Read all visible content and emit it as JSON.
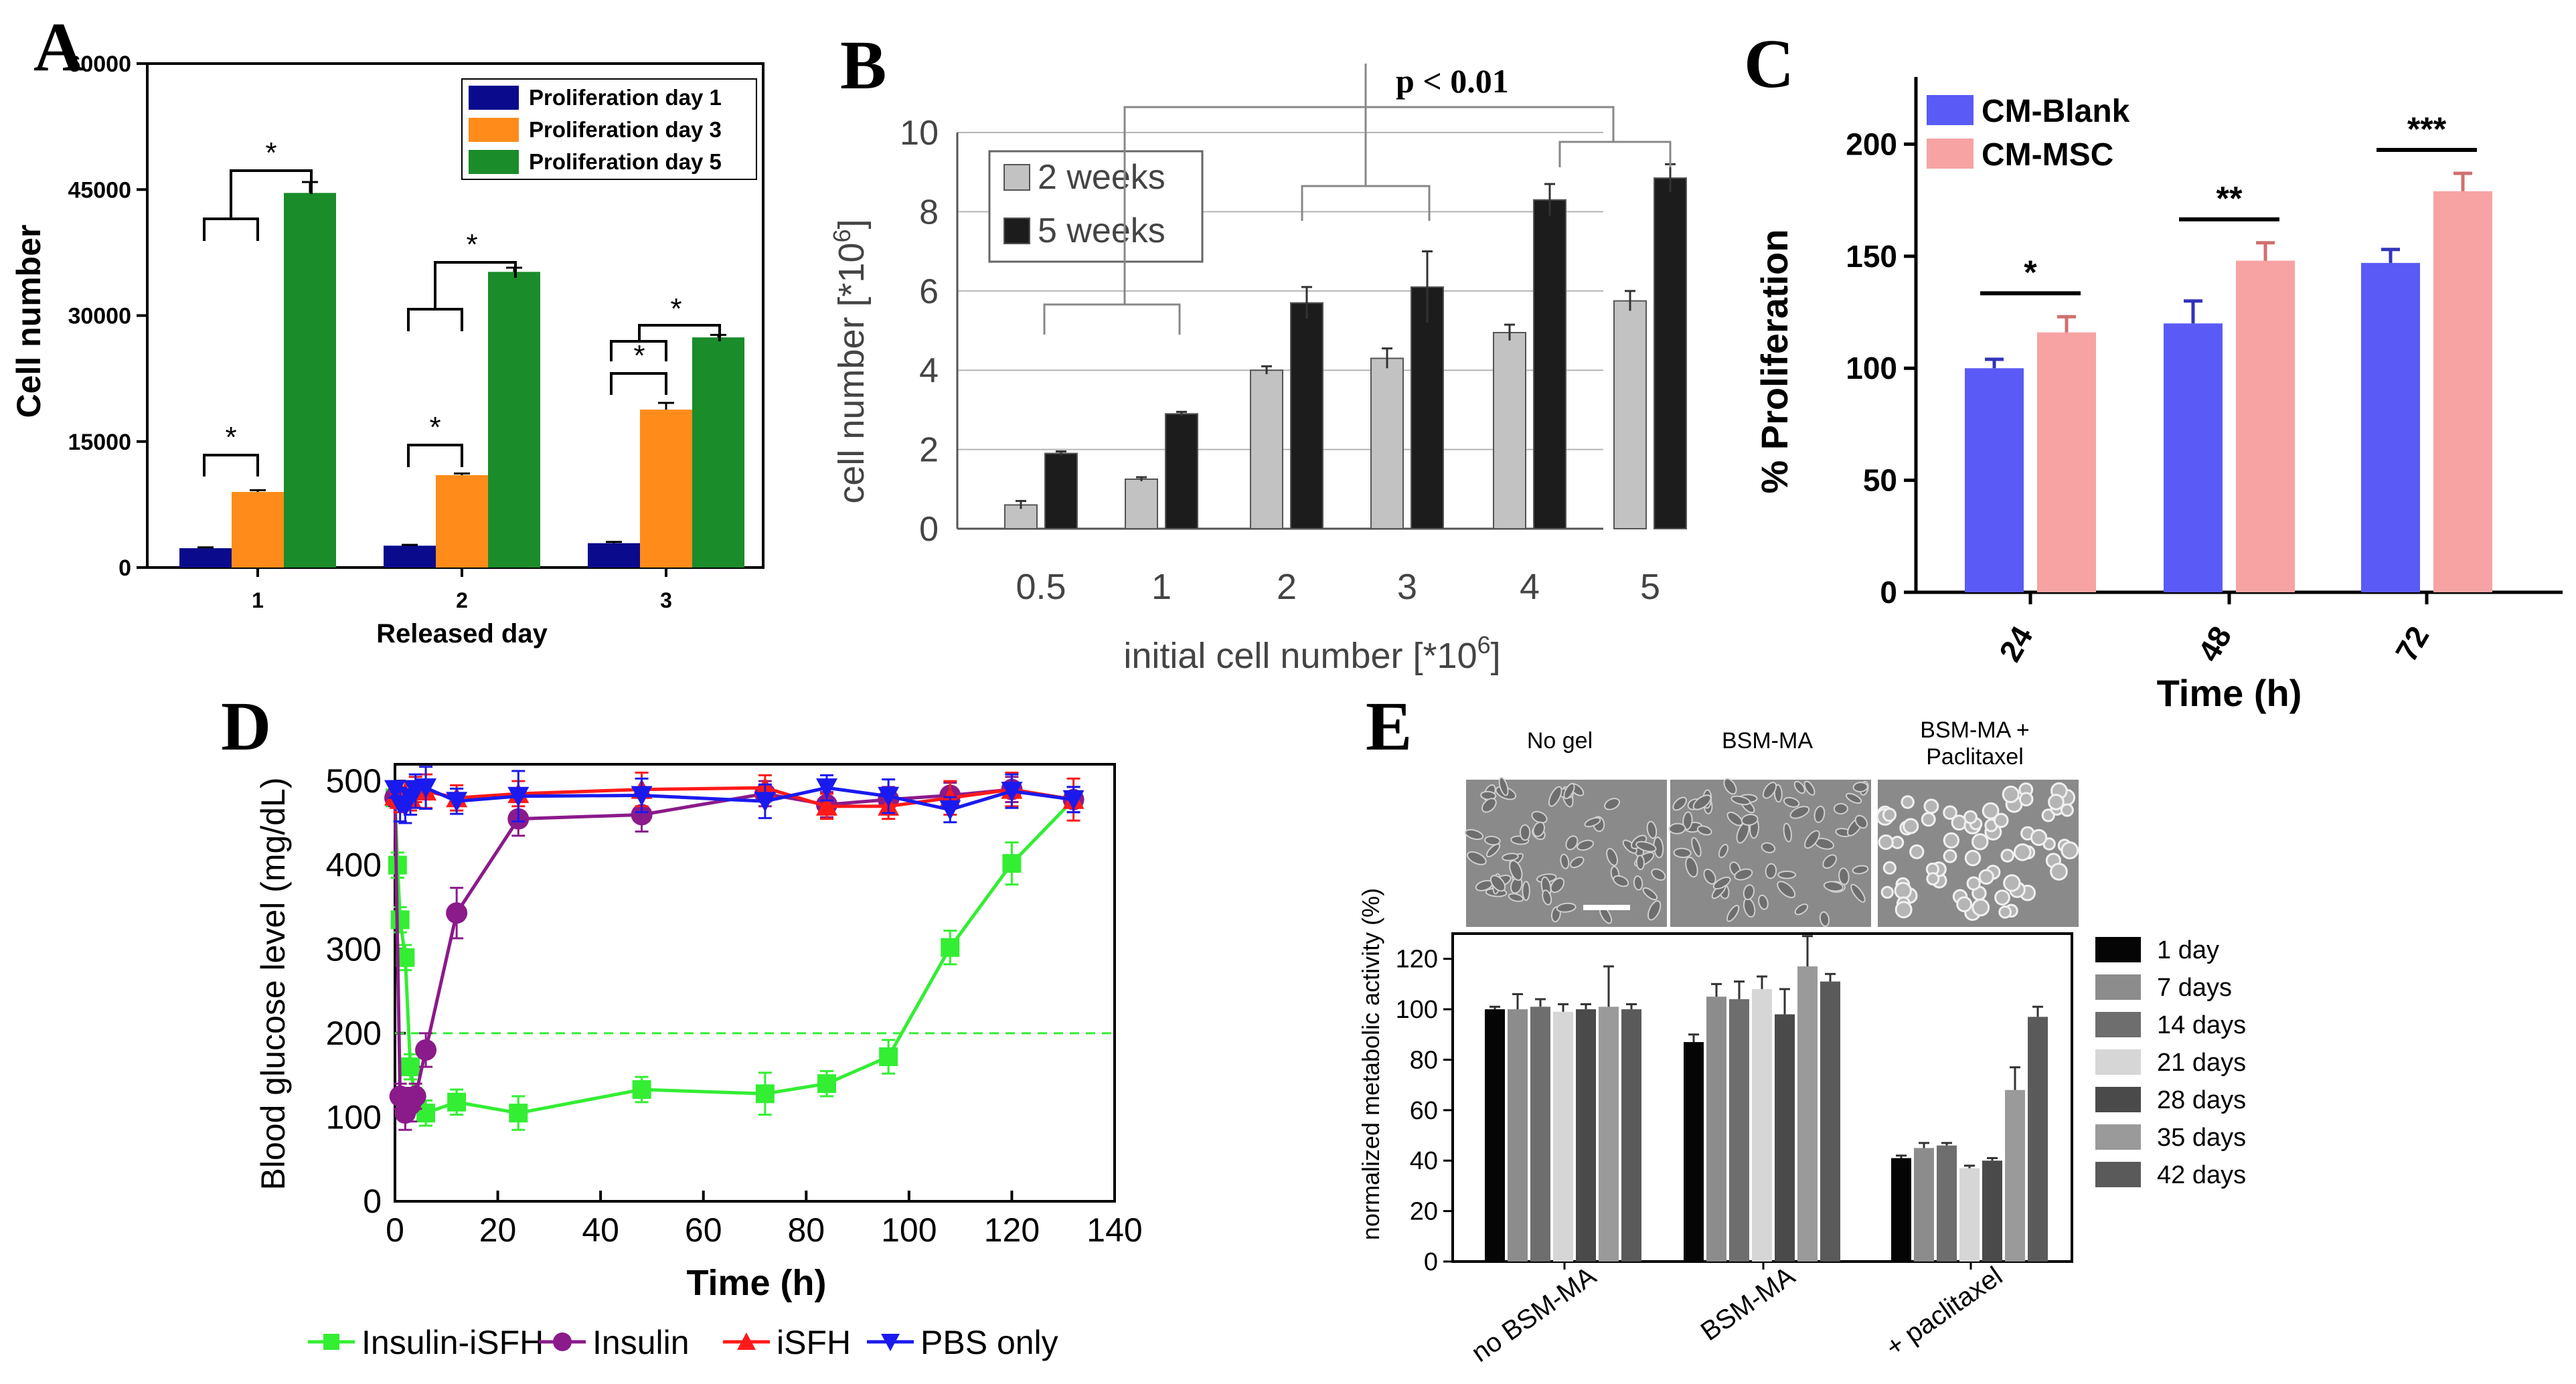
{
  "chart_data": [
    {
      "panel": "A",
      "type": "bar",
      "xlabel": "Released day",
      "ylabel": "Cell number",
      "categories": [
        "1",
        "2",
        "3"
      ],
      "ylim": [
        0,
        60000
      ],
      "yticks": [
        "0",
        "15000",
        "30000",
        "45000",
        "60000"
      ],
      "series": [
        {
          "name": "Proliferation day 1",
          "color": "#0a0a8c",
          "values": [
            2300,
            2600,
            2900
          ],
          "errors": [
            100,
            100,
            150
          ]
        },
        {
          "name": "Proliferation day 3",
          "color": "#ff8c1a",
          "values": [
            9000,
            11000,
            18800
          ],
          "errors": [
            200,
            200,
            800
          ]
        },
        {
          "name": "Proliferation day 5",
          "color": "#1a8c2a",
          "values": [
            44600,
            35200,
            27400
          ],
          "errors": [
            1300,
            500,
            300
          ]
        }
      ],
      "annotations": [
        "*",
        "*",
        "*",
        "*",
        "*",
        "*",
        "*"
      ]
    },
    {
      "panel": "B",
      "type": "bar",
      "xlabel": "initial cell number [*10",
      "xlabel_sup": "6",
      "xlabel_end": "]",
      "ylabel": "cell number [*10",
      "ylabel_sup": "6",
      "ylabel_end": "]",
      "categories": [
        "0.5",
        "1",
        "2",
        "3",
        "4",
        "5"
      ],
      "ylim": [
        0,
        10
      ],
      "yticks": [
        "0",
        "2",
        "4",
        "6",
        "8",
        "10"
      ],
      "series": [
        {
          "name": "2 weeks",
          "color": "#c2c2c2",
          "values": [
            0.6,
            1.25,
            4.0,
            4.3,
            4.95,
            5.75
          ],
          "errors": [
            0.1,
            0.05,
            0.1,
            0.25,
            0.2,
            0.25
          ]
        },
        {
          "name": "5 weeks",
          "color": "#1c1c1c",
          "values": [
            1.9,
            2.9,
            5.7,
            6.1,
            8.3,
            8.85
          ],
          "errors": [
            0.05,
            0.05,
            0.4,
            0.9,
            0.4,
            0.35
          ]
        }
      ],
      "annotation": "p < 0.01"
    },
    {
      "panel": "C",
      "type": "bar",
      "xlabel": "Time (h)",
      "ylabel": "% Proliferation",
      "categories": [
        "24",
        "48",
        "72"
      ],
      "ylim": [
        0,
        230
      ],
      "yticks": [
        "0",
        "50",
        "100",
        "150",
        "200"
      ],
      "series": [
        {
          "name": "CM-Blank",
          "color": "#5a5af7",
          "values": [
            100,
            120,
            147
          ],
          "errors": [
            4,
            10,
            6
          ]
        },
        {
          "name": "CM-MSC",
          "color": "#f7a3a3",
          "values": [
            116,
            148,
            179
          ],
          "errors": [
            7,
            8,
            8
          ]
        }
      ],
      "annotations": [
        "*",
        "**",
        "***"
      ]
    },
    {
      "panel": "D",
      "type": "line",
      "xlabel": "Time (h)",
      "ylabel": "Blood glucose level (mg/dL)",
      "xlim": [
        0,
        140
      ],
      "ylim": [
        0,
        520
      ],
      "xticks": [
        "0",
        "20",
        "40",
        "60",
        "80",
        "100",
        "120",
        "140"
      ],
      "yticks": [
        "0",
        "100",
        "200",
        "300",
        "400",
        "500"
      ],
      "reference_line": 200,
      "series": [
        {
          "name": "Insulin-iSFH",
          "color": "#33ee33",
          "marker": "square",
          "x": [
            0,
            0.5,
            1,
            2,
            3,
            4,
            6,
            12,
            24,
            48,
            72,
            84,
            96,
            108,
            120,
            132
          ],
          "y": [
            480,
            400,
            335,
            290,
            160,
            120,
            105,
            118,
            105,
            133,
            128,
            140,
            172,
            302,
            402,
            478
          ],
          "err": [
            10,
            15,
            15,
            15,
            15,
            15,
            15,
            15,
            20,
            15,
            25,
            15,
            20,
            20,
            25,
            15
          ]
        },
        {
          "name": "Insulin",
          "color": "#8b1a8b",
          "marker": "circle",
          "x": [
            0,
            1,
            2,
            3,
            4,
            6,
            12,
            24,
            48,
            72,
            84,
            96,
            108,
            120,
            132
          ],
          "y": [
            480,
            125,
            105,
            115,
            125,
            180,
            343,
            455,
            460,
            485,
            472,
            478,
            483,
            490,
            478
          ],
          "err": [
            10,
            15,
            20,
            20,
            15,
            20,
            30,
            20,
            20,
            15,
            15,
            15,
            15,
            15,
            15
          ]
        },
        {
          "name": "iSFH",
          "color": "#ff1a1a",
          "marker": "triangle",
          "x": [
            0,
            1,
            2,
            3,
            4,
            6,
            12,
            24,
            48,
            72,
            84,
            96,
            108,
            120,
            132
          ],
          "y": [
            482,
            478,
            485,
            480,
            490,
            488,
            480,
            485,
            490,
            492,
            470,
            470,
            480,
            490,
            478
          ],
          "err": [
            10,
            15,
            15,
            15,
            15,
            20,
            15,
            15,
            20,
            15,
            15,
            15,
            20,
            20,
            25
          ]
        },
        {
          "name": "PBS only",
          "color": "#1a1aee",
          "marker": "triangle-down",
          "x": [
            0,
            1,
            2,
            3,
            4,
            6,
            12,
            24,
            48,
            72,
            84,
            96,
            108,
            120,
            132
          ],
          "y": [
            490,
            472,
            470,
            480,
            488,
            492,
            476,
            482,
            483,
            476,
            492,
            482,
            466,
            488,
            478
          ],
          "err": [
            10,
            20,
            20,
            20,
            20,
            25,
            15,
            30,
            20,
            20,
            15,
            20,
            15,
            20,
            15
          ]
        }
      ]
    },
    {
      "panel": "E",
      "type": "bar",
      "xlabel": "",
      "ylabel": "normalized metabolic activity (%)",
      "categories": [
        "no BSM-MA",
        "BSM-MA",
        "+ paclitaxel"
      ],
      "ylim": [
        0,
        130
      ],
      "yticks": [
        "0",
        "20",
        "40",
        "60",
        "80",
        "100",
        "120"
      ],
      "image_captions": [
        "No gel",
        "BSM-MA",
        "BSM-MA +",
        "Paclitaxel"
      ],
      "series": [
        {
          "name": "1 day",
          "color": "#050505",
          "values": [
            100,
            87,
            41
          ],
          "errors": [
            1,
            3,
            1
          ]
        },
        {
          "name": "7 days",
          "color": "#8c8c8c",
          "values": [
            100,
            105,
            45
          ],
          "errors": [
            6,
            5,
            2
          ]
        },
        {
          "name": "14 days",
          "color": "#6e6e6e",
          "values": [
            101,
            104,
            46
          ],
          "errors": [
            3,
            7,
            1
          ]
        },
        {
          "name": "21 days",
          "color": "#d6d6d6",
          "values": [
            99,
            108,
            37
          ],
          "errors": [
            3,
            5,
            1
          ]
        },
        {
          "name": "28 days",
          "color": "#4a4a4a",
          "values": [
            100,
            98,
            40
          ],
          "errors": [
            2,
            10,
            1
          ]
        },
        {
          "name": "35 days",
          "color": "#9a9a9a",
          "values": [
            101,
            117,
            68
          ],
          "errors": [
            16,
            12,
            9
          ]
        },
        {
          "name": "42 days",
          "color": "#5a5a5a",
          "values": [
            100,
            111,
            97
          ],
          "errors": [
            2,
            3,
            4
          ]
        }
      ]
    }
  ]
}
